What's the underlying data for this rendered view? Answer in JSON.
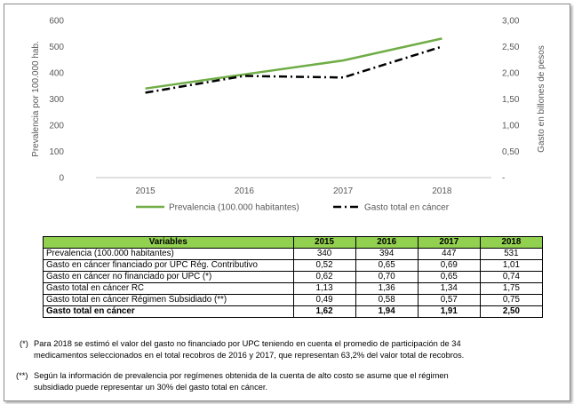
{
  "chart_data": {
    "type": "line",
    "categories": [
      "2015",
      "2016",
      "2017",
      "2018"
    ],
    "ylabel_left": "Prevalencia por 100.000 hab.",
    "ylabel_right": "Gasto en billones de pesos",
    "yticks_left": [
      "0",
      "100",
      "200",
      "300",
      "400",
      "500",
      "600"
    ],
    "yticks_right": [
      "-",
      "0,50",
      "1,00",
      "1,50",
      "2,00",
      "2,50",
      "3,00"
    ],
    "ylim_left": [
      0,
      600
    ],
    "ylim_right": [
      0,
      3
    ],
    "legend": "bottom",
    "series": [
      {
        "name": "Prevalencia (100.000 habitantes)",
        "axis": "left",
        "color": "#70ad47",
        "style": "solid",
        "values": [
          340,
          394,
          447,
          531
        ]
      },
      {
        "name": "Gasto total en cáncer",
        "axis": "right",
        "color": "#000000",
        "style": "dash-dot",
        "values": [
          1.62,
          1.94,
          1.91,
          2.5
        ]
      }
    ]
  },
  "table": {
    "headers": [
      "Variables",
      "2015",
      "2016",
      "2017",
      "2018"
    ],
    "rows": [
      {
        "label": "Prevalencia (100.000 habitantes)",
        "values": [
          "340",
          "394",
          "447",
          "531"
        ],
        "bold": false
      },
      {
        "label": "Gasto en cáncer financiado por UPC Rég. Contributivo",
        "values": [
          "0,52",
          "0,65",
          "0,69",
          "1,01"
        ],
        "bold": false
      },
      {
        "label": "Gasto en cáncer no financiado por UPC (*)",
        "values": [
          "0,62",
          "0,70",
          "0,65",
          "0,74"
        ],
        "bold": false
      },
      {
        "label": "Gasto total en cáncer RC",
        "values": [
          "1,13",
          "1,36",
          "1,34",
          "1,75"
        ],
        "bold": false
      },
      {
        "label": "Gasto total en cáncer Régimen Subsidiado (**)",
        "values": [
          "0,49",
          "0,58",
          "0,57",
          "0,75"
        ],
        "bold": false
      },
      {
        "label": "Gasto total en cáncer",
        "values": [
          "1,62",
          "1,94",
          "1,91",
          "2,50"
        ],
        "bold": true
      }
    ]
  },
  "notes": [
    {
      "mark": "(*)",
      "lines": [
        "Para 2018 se estimó el valor del gasto no financiado por UPC teniendo en cuenta el promedio de participación de 34",
        "medicamentos seleccionados en el total recobros de 2016 y 2017, que representan 63,2% del valor total de recobros."
      ]
    },
    {
      "mark": "(**)",
      "lines": [
        "Según la información de prevalencia por regímenes obtenida de la cuenta de alto costo se asume que el régimen",
        "subsidiado puede representar un 30% del gasto total en cáncer."
      ]
    }
  ]
}
